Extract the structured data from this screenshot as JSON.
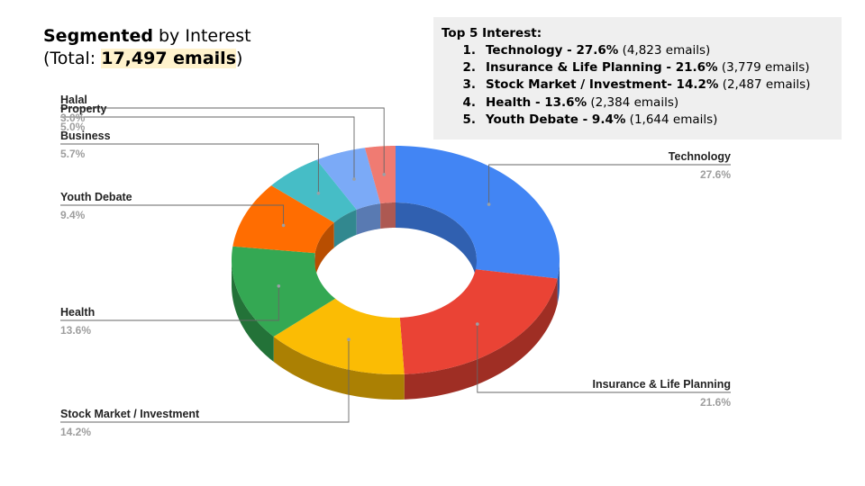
{
  "header": {
    "title_bold": "Segmented",
    "title_rest": " by Interest",
    "total_prefix": "(Total: ",
    "total_value": "17,497 emails",
    "total_suffix": ")"
  },
  "top5": {
    "title": "Top 5 Interest:",
    "items": [
      {
        "num": "1.",
        "label": "Technology - 27.6%",
        "count": " (4,823 emails)"
      },
      {
        "num": "2.",
        "label": "Insurance & Life Planning - 21.6%",
        "count": " (3,779 emails)"
      },
      {
        "num": "3.",
        "label": "Stock Market / Investment- 14.2%",
        "count": " (2,487 emails)"
      },
      {
        "num": "4.",
        "label": "Health - 13.6%",
        "count": " (2,384 emails)"
      },
      {
        "num": "5.",
        "label": "Youth Debate - 9.4%",
        "count": " (1,644 emails)"
      }
    ]
  },
  "chart_data": {
    "type": "pie",
    "style": "3d-donut",
    "categories": [
      "Technology",
      "Insurance & Life Planning",
      "Stock Market / Investment",
      "Health",
      "Youth Debate",
      "Business",
      "Property",
      "Halal"
    ],
    "values": [
      27.6,
      21.6,
      14.2,
      13.6,
      9.4,
      5.7,
      5.0,
      3.0
    ],
    "value_labels": [
      "27.6%",
      "21.6%",
      "14.2%",
      "13.6%",
      "9.4%",
      "5.7%",
      "5.0%",
      "3.0%"
    ],
    "colors": [
      "#4285f4",
      "#ea4335",
      "#fbbc04",
      "#34a853",
      "#ff6d01",
      "#46bdc6",
      "#7baaf7",
      "#f07b72"
    ],
    "legend": "none"
  }
}
